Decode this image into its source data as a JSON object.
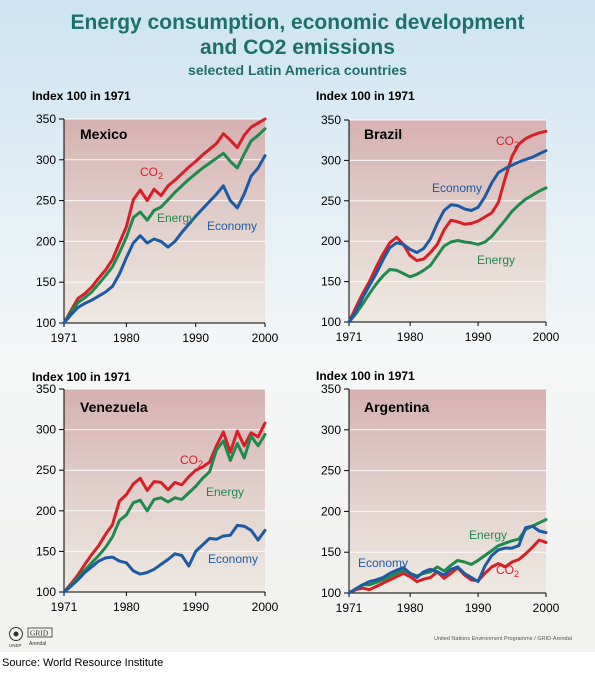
{
  "title_line1": "Energy consumption, economic development",
  "title_line2": "and CO2 emissions",
  "subtitle": "selected Latin America countries",
  "source": "Source: World Resource Institute",
  "credit": "United Nations Environment Programme / GRID-Arendal",
  "logo": {
    "org1": "UNEP",
    "org2": "GRID",
    "org3": "Arendal"
  },
  "colors": {
    "co2": "#d81f26",
    "energy": "#1f8a4c",
    "economy": "#1d5aa6",
    "title": "#1f6f6a"
  },
  "chart_data": [
    {
      "type": "line",
      "country": "Mexico",
      "ylabel": "Index 100 in 1971",
      "ylim": [
        100,
        350
      ],
      "yticks": [
        "100",
        "150",
        "200",
        "250",
        "300",
        "350"
      ],
      "xticks": [
        "1971",
        "1980",
        "1990",
        "2000"
      ],
      "xlim": [
        1971,
        2000
      ],
      "x": [
        1971,
        1972,
        1973,
        1974,
        1975,
        1976,
        1977,
        1978,
        1979,
        1980,
        1981,
        1982,
        1983,
        1984,
        1985,
        1986,
        1987,
        1988,
        1989,
        1990,
        1991,
        1992,
        1993,
        1994,
        1995,
        1996,
        1997,
        1998,
        1999,
        2000
      ],
      "series": [
        {
          "name": "CO2",
          "key": "co2",
          "values": [
            100,
            115,
            130,
            136,
            144,
            155,
            165,
            178,
            198,
            218,
            251,
            263,
            250,
            264,
            256,
            268,
            275,
            283,
            291,
            298,
            306,
            313,
            320,
            332,
            324,
            315,
            330,
            340,
            345,
            350
          ]
        },
        {
          "name": "Energy",
          "key": "energy",
          "values": [
            100,
            113,
            125,
            131,
            138,
            148,
            158,
            169,
            186,
            205,
            229,
            236,
            226,
            238,
            242,
            251,
            260,
            268,
            276,
            283,
            290,
            296,
            302,
            308,
            298,
            290,
            307,
            323,
            330,
            338
          ]
        },
        {
          "name": "Economy",
          "key": "economy",
          "values": [
            100,
            110,
            119,
            124,
            128,
            133,
            138,
            145,
            160,
            180,
            198,
            207,
            198,
            203,
            200,
            193,
            200,
            211,
            221,
            231,
            240,
            249,
            258,
            268,
            250,
            241,
            258,
            280,
            290,
            305
          ]
        }
      ]
    },
    {
      "type": "line",
      "country": "Brazil",
      "ylabel": "Index 100 in 1971",
      "ylim": [
        100,
        350
      ],
      "yticks": [
        "100",
        "150",
        "200",
        "250",
        "300",
        "350"
      ],
      "xticks": [
        "1971",
        "1980",
        "1990",
        "2000"
      ],
      "xlim": [
        1971,
        2000
      ],
      "x": [
        1971,
        1972,
        1973,
        1974,
        1975,
        1976,
        1977,
        1978,
        1979,
        1980,
        1981,
        1982,
        1983,
        1984,
        1985,
        1986,
        1987,
        1988,
        1989,
        1990,
        1991,
        1992,
        1993,
        1994,
        1995,
        1996,
        1997,
        1998,
        1999,
        2000
      ],
      "series": [
        {
          "name": "CO2",
          "key": "co2",
          "values": [
            100,
            118,
            135,
            150,
            168,
            184,
            198,
            205,
            196,
            182,
            176,
            178,
            186,
            196,
            214,
            226,
            224,
            221,
            222,
            225,
            230,
            235,
            248,
            278,
            305,
            320,
            327,
            331,
            334,
            336
          ]
        },
        {
          "name": "Energy",
          "key": "energy",
          "values": [
            100,
            110,
            122,
            135,
            147,
            157,
            165,
            164,
            160,
            156,
            159,
            164,
            170,
            182,
            194,
            199,
            201,
            199,
            198,
            196,
            199,
            206,
            216,
            226,
            237,
            245,
            252,
            257,
            262,
            266
          ]
        },
        {
          "name": "Economy",
          "key": "economy",
          "values": [
            100,
            113,
            130,
            145,
            160,
            177,
            192,
            198,
            196,
            190,
            186,
            191,
            203,
            222,
            238,
            245,
            244,
            240,
            238,
            242,
            255,
            272,
            285,
            290,
            294,
            298,
            301,
            304,
            308,
            312
          ]
        }
      ]
    },
    {
      "type": "line",
      "country": "Venezuela",
      "ylabel": "Index 100 in 1971",
      "ylim": [
        100,
        350
      ],
      "yticks": [
        "100",
        "150",
        "200",
        "250",
        "300",
        "350"
      ],
      "xticks": [
        "1971",
        "1980",
        "1990",
        "2000"
      ],
      "xlim": [
        1971,
        2000
      ],
      "x": [
        1971,
        1972,
        1973,
        1974,
        1975,
        1976,
        1977,
        1978,
        1979,
        1980,
        1981,
        1982,
        1983,
        1984,
        1985,
        1986,
        1987,
        1988,
        1989,
        1990,
        1991,
        1992,
        1993,
        1994,
        1995,
        1996,
        1997,
        1998,
        1999,
        2000
      ],
      "series": [
        {
          "name": "CO2",
          "key": "co2",
          "values": [
            100,
            110,
            121,
            134,
            146,
            157,
            171,
            183,
            212,
            220,
            233,
            240,
            225,
            236,
            235,
            226,
            235,
            232,
            242,
            250,
            254,
            260,
            280,
            297,
            272,
            298,
            280,
            296,
            291,
            308
          ]
        },
        {
          "name": "Energy",
          "key": "energy",
          "values": [
            100,
            108,
            118,
            127,
            136,
            145,
            155,
            168,
            188,
            195,
            210,
            213,
            200,
            214,
            216,
            211,
            216,
            214,
            222,
            230,
            240,
            248,
            275,
            286,
            262,
            283,
            265,
            292,
            280,
            294
          ]
        },
        {
          "name": "Economy",
          "key": "economy",
          "values": [
            100,
            107,
            115,
            124,
            131,
            138,
            142,
            143,
            138,
            136,
            126,
            122,
            124,
            128,
            134,
            140,
            147,
            145,
            132,
            150,
            158,
            166,
            165,
            169,
            170,
            182,
            181,
            176,
            164,
            176
          ]
        }
      ]
    },
    {
      "type": "line",
      "country": "Argentina",
      "ylabel": "Index 100 in 1971",
      "ylim": [
        100,
        350
      ],
      "yticks": [
        "100",
        "150",
        "200",
        "250",
        "300",
        "350"
      ],
      "xticks": [
        "1971",
        "1980",
        "1990",
        "2000"
      ],
      "xlim": [
        1971,
        2000
      ],
      "x": [
        1971,
        1972,
        1973,
        1974,
        1975,
        1976,
        1977,
        1978,
        1979,
        1980,
        1981,
        1982,
        1983,
        1984,
        1985,
        1986,
        1987,
        1988,
        1989,
        1990,
        1991,
        1992,
        1993,
        1994,
        1995,
        1996,
        1997,
        1998,
        1999,
        2000
      ],
      "series": [
        {
          "name": "CO2",
          "key": "co2",
          "values": [
            100,
            104,
            106,
            104,
            108,
            112,
            116,
            120,
            124,
            120,
            114,
            117,
            119,
            126,
            118,
            124,
            131,
            122,
            116,
            115,
            124,
            132,
            136,
            132,
            138,
            141,
            148,
            156,
            165,
            162
          ]
        },
        {
          "name": "Energy",
          "key": "energy",
          "values": [
            100,
            105,
            110,
            110,
            113,
            116,
            120,
            124,
            128,
            124,
            121,
            124,
            126,
            132,
            127,
            134,
            140,
            138,
            135,
            140,
            146,
            152,
            158,
            161,
            164,
            166,
            178,
            182,
            186,
            190
          ]
        },
        {
          "name": "Economy",
          "key": "economy",
          "values": [
            100,
            105,
            110,
            114,
            116,
            119,
            124,
            128,
            131,
            124,
            119,
            126,
            129,
            126,
            122,
            129,
            132,
            124,
            119,
            114,
            133,
            146,
            153,
            155,
            155,
            158,
            180,
            182,
            176,
            174
          ]
        }
      ]
    }
  ]
}
